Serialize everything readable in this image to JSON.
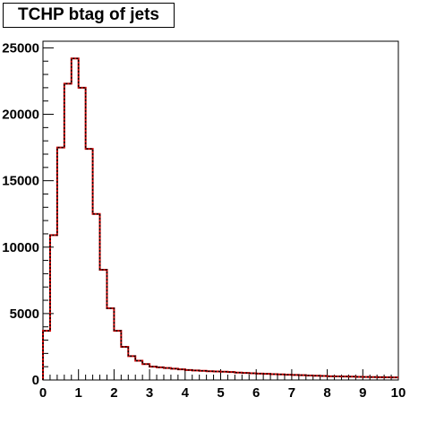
{
  "chart_data": {
    "type": "histogram",
    "title": "TCHP btag of jets",
    "xlabel": "",
    "ylabel": "",
    "xlim": [
      0,
      10
    ],
    "ylim": [
      0,
      25500
    ],
    "bin_width": 0.2,
    "x_ticks": [
      0,
      1,
      2,
      3,
      4,
      5,
      6,
      7,
      8,
      9,
      10
    ],
    "x_tick_labels": [
      "0",
      "1",
      "2",
      "3",
      "4",
      "5",
      "6",
      "7",
      "8",
      "9",
      "10"
    ],
    "y_ticks": [
      0,
      5000,
      10000,
      15000,
      20000,
      25000
    ],
    "y_tick_labels": [
      "0",
      "5000",
      "10000",
      "15000",
      "20000",
      "25000"
    ],
    "grid": false,
    "legend": "none",
    "series": [
      {
        "color": "#cc0000",
        "line_style": "solid",
        "values": [
          3700,
          10900,
          17500,
          22300,
          24200,
          22000,
          17400,
          12500,
          8300,
          5400,
          3700,
          2500,
          1800,
          1450,
          1200,
          1000,
          950,
          900,
          850,
          800,
          750,
          720,
          690,
          660,
          640,
          620,
          600,
          560,
          530,
          510,
          480,
          460,
          440,
          420,
          400,
          380,
          360,
          340,
          320,
          300,
          280,
          270,
          260,
          250,
          240,
          230,
          220,
          210,
          200,
          190
        ]
      },
      {
        "color": "#000000",
        "line_style": "dotted",
        "values": [
          3700,
          10900,
          17500,
          22300,
          24200,
          22000,
          17400,
          12500,
          8300,
          5400,
          3700,
          2500,
          1800,
          1450,
          1200,
          1000,
          950,
          900,
          850,
          800,
          750,
          720,
          690,
          660,
          640,
          620,
          600,
          560,
          530,
          510,
          480,
          460,
          440,
          420,
          400,
          380,
          360,
          340,
          320,
          300,
          280,
          270,
          260,
          250,
          240,
          230,
          220,
          210,
          200,
          190
        ]
      }
    ]
  }
}
